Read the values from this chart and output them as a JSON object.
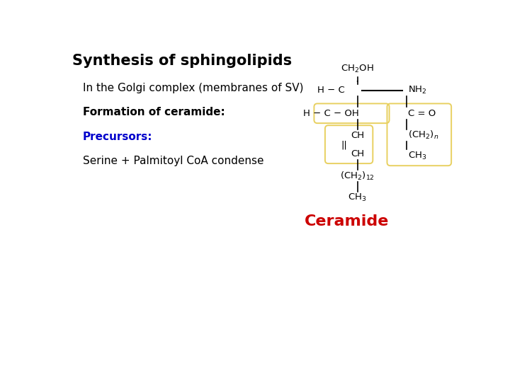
{
  "title": "Synthesis of sphingolipids",
  "title_fontsize": 15,
  "line1": "In the Golgi complex (membranes of SV)",
  "line1_fontsize": 11,
  "line2": "Formation of ceramide:",
  "line2_fontsize": 11,
  "line3": "Precursors:",
  "line3_fontsize": 11,
  "line3_color": "#0000CC",
  "line4": "Serine + Palmitoyl CoA condense",
  "line4_fontsize": 11,
  "ceramide_label": "Ceramide",
  "ceramide_color": "#CC0000",
  "ceramide_fontsize": 16,
  "bg_color": "#FFFFFF",
  "text_color": "#000000",
  "box_color": "#E8D060"
}
